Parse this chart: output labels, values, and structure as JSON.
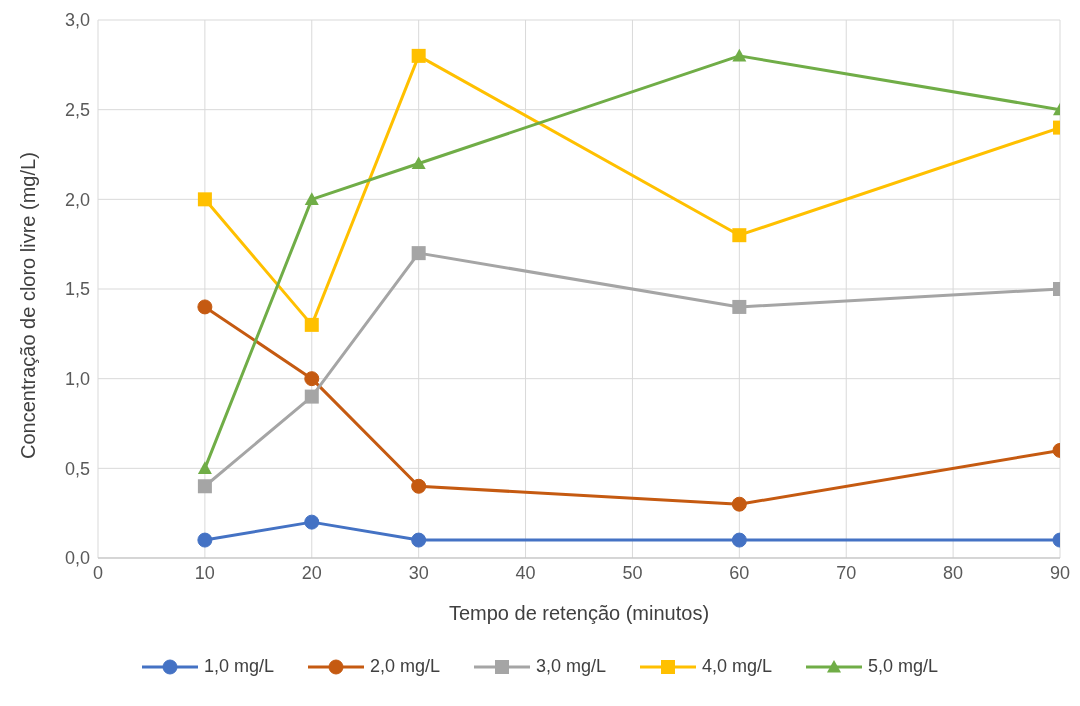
{
  "chart_data": {
    "type": "line",
    "xlabel": "Tempo de retenção (minutos)",
    "ylabel": "Concentração de cloro livre (mg/L)",
    "x": [
      10,
      20,
      30,
      60,
      90
    ],
    "xlim": [
      0,
      90
    ],
    "xticks": [
      0,
      10,
      20,
      30,
      40,
      50,
      60,
      70,
      80,
      90
    ],
    "ylim": [
      0,
      3
    ],
    "yticks": [
      {
        "value": 0,
        "label": "0,0"
      },
      {
        "value": 0.5,
        "label": "0,5"
      },
      {
        "value": 1,
        "label": "1,0"
      },
      {
        "value": 1.5,
        "label": "1,5"
      },
      {
        "value": 2,
        "label": "2,0"
      },
      {
        "value": 2.5,
        "label": "2,5"
      },
      {
        "value": 3,
        "label": "3,0"
      }
    ],
    "grid": true,
    "legend": "bottom",
    "line_style": "solid",
    "series": [
      {
        "name": "1,0 mg/L",
        "color": "#4472c4",
        "marker": "circle",
        "values": [
          0.1,
          0.2,
          0.1,
          0.1,
          0.1
        ]
      },
      {
        "name": "2,0 mg/L",
        "color": "#c55a11",
        "marker": "circle",
        "values": [
          1.4,
          1.0,
          0.4,
          0.3,
          0.6
        ]
      },
      {
        "name": "3,0 mg/L",
        "color": "#a5a5a5",
        "marker": "square",
        "values": [
          0.4,
          0.9,
          1.7,
          1.4,
          1.5
        ]
      },
      {
        "name": "4,0 mg/L",
        "color": "#ffc000",
        "marker": "square",
        "values": [
          2.0,
          1.3,
          2.8,
          1.8,
          2.4
        ]
      },
      {
        "name": "5,0 mg/L",
        "color": "#70ad47",
        "marker": "triangle",
        "values": [
          0.5,
          2.0,
          2.2,
          2.8,
          2.5
        ]
      }
    ]
  }
}
